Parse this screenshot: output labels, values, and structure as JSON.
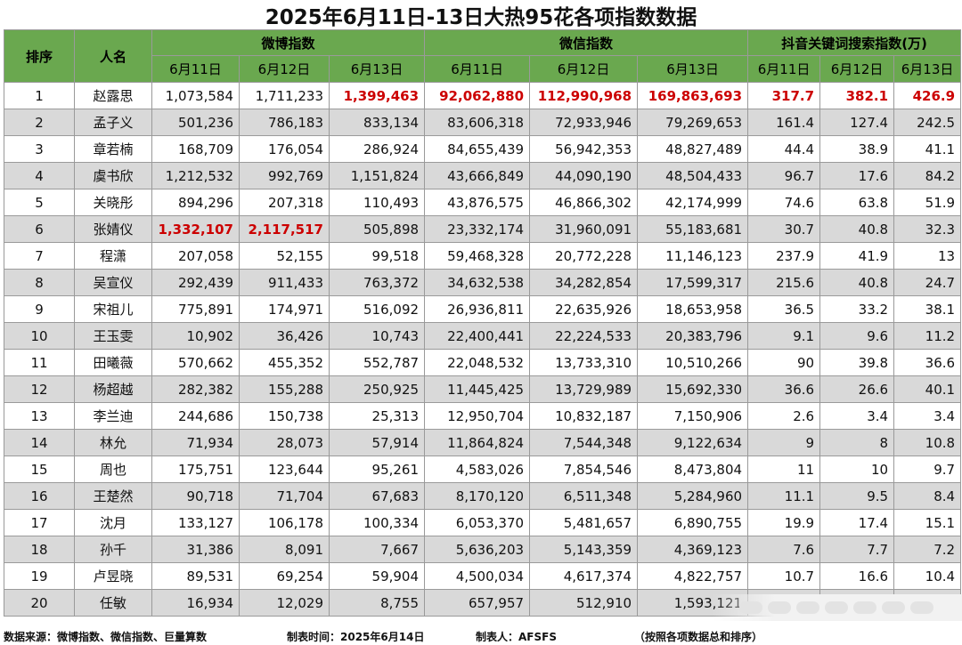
{
  "title": "2025年6月11日-13日大热95花各项指数数据",
  "headers": {
    "rank": "排序",
    "name": "人名",
    "weibo": "微博指数",
    "weixin": "微信指数",
    "douyin": "抖音关键词搜索指数(万)",
    "dates": [
      "6月11日",
      "6月12日",
      "6月13日"
    ]
  },
  "highlight_color": "#cc0000",
  "header_color": "#6aa84f",
  "rows": [
    {
      "rank": "1",
      "name": "赵露思",
      "weibo": [
        "1,073,584",
        "1,711,233",
        "1,399,463"
      ],
      "weixin": [
        "92,062,880",
        "112,990,968",
        "169,863,693"
      ],
      "douyin": [
        "317.7",
        "382.1",
        "426.9"
      ],
      "highlight": [
        "wb2",
        "wx0",
        "wx1",
        "wx2",
        "dy0",
        "dy1",
        "dy2"
      ]
    },
    {
      "rank": "2",
      "name": "孟子义",
      "weibo": [
        "501,236",
        "786,183",
        "833,134"
      ],
      "weixin": [
        "83,606,318",
        "72,933,946",
        "79,269,653"
      ],
      "douyin": [
        "161.4",
        "127.4",
        "242.5"
      ],
      "highlight": []
    },
    {
      "rank": "3",
      "name": "章若楠",
      "weibo": [
        "168,709",
        "176,054",
        "286,924"
      ],
      "weixin": [
        "84,655,439",
        "56,942,353",
        "48,827,489"
      ],
      "douyin": [
        "44.4",
        "38.9",
        "41.1"
      ],
      "highlight": []
    },
    {
      "rank": "4",
      "name": "虞书欣",
      "weibo": [
        "1,212,532",
        "992,769",
        "1,151,824"
      ],
      "weixin": [
        "43,666,849",
        "44,090,190",
        "48,504,433"
      ],
      "douyin": [
        "96.7",
        "17.6",
        "84.2"
      ],
      "highlight": []
    },
    {
      "rank": "5",
      "name": "关晓彤",
      "weibo": [
        "894,296",
        "207,318",
        "110,493"
      ],
      "weixin": [
        "43,876,575",
        "46,866,302",
        "42,174,999"
      ],
      "douyin": [
        "74.6",
        "63.8",
        "51.9"
      ],
      "highlight": []
    },
    {
      "rank": "6",
      "name": "张婧仪",
      "weibo": [
        "1,332,107",
        "2,117,517",
        "505,898"
      ],
      "weixin": [
        "23,332,174",
        "31,960,091",
        "55,183,681"
      ],
      "douyin": [
        "30.7",
        "40.8",
        "32.3"
      ],
      "highlight": [
        "wb0",
        "wb1"
      ]
    },
    {
      "rank": "7",
      "name": "程潇",
      "weibo": [
        "207,058",
        "52,155",
        "99,518"
      ],
      "weixin": [
        "59,468,328",
        "20,772,228",
        "11,146,123"
      ],
      "douyin": [
        "237.9",
        "41.9",
        "13"
      ],
      "highlight": []
    },
    {
      "rank": "8",
      "name": "吴宣仪",
      "weibo": [
        "292,439",
        "911,433",
        "763,372"
      ],
      "weixin": [
        "34,632,538",
        "34,282,854",
        "17,599,317"
      ],
      "douyin": [
        "215.6",
        "40.8",
        "24.7"
      ],
      "highlight": []
    },
    {
      "rank": "9",
      "name": "宋祖儿",
      "weibo": [
        "775,891",
        "174,971",
        "516,092"
      ],
      "weixin": [
        "26,936,811",
        "22,635,926",
        "18,653,958"
      ],
      "douyin": [
        "36.5",
        "33.2",
        "38.1"
      ],
      "highlight": []
    },
    {
      "rank": "10",
      "name": "王玉雯",
      "weibo": [
        "10,902",
        "36,426",
        "10,743"
      ],
      "weixin": [
        "22,400,441",
        "22,224,533",
        "20,383,796"
      ],
      "douyin": [
        "9.1",
        "9.6",
        "11.2"
      ],
      "highlight": []
    },
    {
      "rank": "11",
      "name": "田曦薇",
      "weibo": [
        "570,662",
        "455,352",
        "552,787"
      ],
      "weixin": [
        "22,048,532",
        "13,733,310",
        "10,510,266"
      ],
      "douyin": [
        "90",
        "39.8",
        "36.6"
      ],
      "highlight": []
    },
    {
      "rank": "12",
      "name": "杨超越",
      "weibo": [
        "282,382",
        "155,288",
        "250,925"
      ],
      "weixin": [
        "11,445,425",
        "13,729,989",
        "15,692,330"
      ],
      "douyin": [
        "36.6",
        "26.6",
        "40.1"
      ],
      "highlight": []
    },
    {
      "rank": "13",
      "name": "李兰迪",
      "weibo": [
        "244,686",
        "150,738",
        "25,313"
      ],
      "weixin": [
        "12,950,704",
        "10,832,187",
        "7,150,906"
      ],
      "douyin": [
        "2.6",
        "3.4",
        "3.4"
      ],
      "highlight": []
    },
    {
      "rank": "14",
      "name": "林允",
      "weibo": [
        "71,934",
        "28,073",
        "57,914"
      ],
      "weixin": [
        "11,864,824",
        "7,544,348",
        "9,122,634"
      ],
      "douyin": [
        "9",
        "8",
        "10.8"
      ],
      "highlight": []
    },
    {
      "rank": "15",
      "name": "周也",
      "weibo": [
        "175,751",
        "123,644",
        "95,261"
      ],
      "weixin": [
        "4,583,026",
        "7,854,546",
        "8,473,804"
      ],
      "douyin": [
        "11",
        "10",
        "9.7"
      ],
      "highlight": []
    },
    {
      "rank": "16",
      "name": "王楚然",
      "weibo": [
        "90,718",
        "71,704",
        "67,683"
      ],
      "weixin": [
        "8,170,120",
        "6,511,348",
        "5,284,960"
      ],
      "douyin": [
        "11.1",
        "9.5",
        "8.4"
      ],
      "highlight": []
    },
    {
      "rank": "17",
      "name": "沈月",
      "weibo": [
        "133,127",
        "106,178",
        "100,334"
      ],
      "weixin": [
        "6,053,370",
        "5,481,657",
        "6,890,755"
      ],
      "douyin": [
        "19.9",
        "17.4",
        "15.1"
      ],
      "highlight": []
    },
    {
      "rank": "18",
      "name": "孙千",
      "weibo": [
        "31,386",
        "8,091",
        "7,667"
      ],
      "weixin": [
        "5,636,203",
        "5,143,359",
        "4,369,123"
      ],
      "douyin": [
        "7.6",
        "7.7",
        "7.2"
      ],
      "highlight": []
    },
    {
      "rank": "19",
      "name": "卢昱晓",
      "weibo": [
        "89,531",
        "69,254",
        "59,904"
      ],
      "weixin": [
        "4,500,034",
        "4,617,374",
        "4,822,757"
      ],
      "douyin": [
        "10.7",
        "16.6",
        "10.4"
      ],
      "highlight": []
    },
    {
      "rank": "20",
      "name": "任敏",
      "weibo": [
        "16,934",
        "12,029",
        "8,755"
      ],
      "weixin": [
        "657,957",
        "512,910",
        "1,593,121"
      ],
      "douyin": [
        "",
        "",
        ""
      ],
      "highlight": []
    }
  ],
  "footer": {
    "source": "数据来源：微博指数、微信指数、巨量算数",
    "time": "制表时间：2025年6月14日",
    "author": "制表人：AFSFS",
    "note": "（按照各项数据总和排序）"
  }
}
